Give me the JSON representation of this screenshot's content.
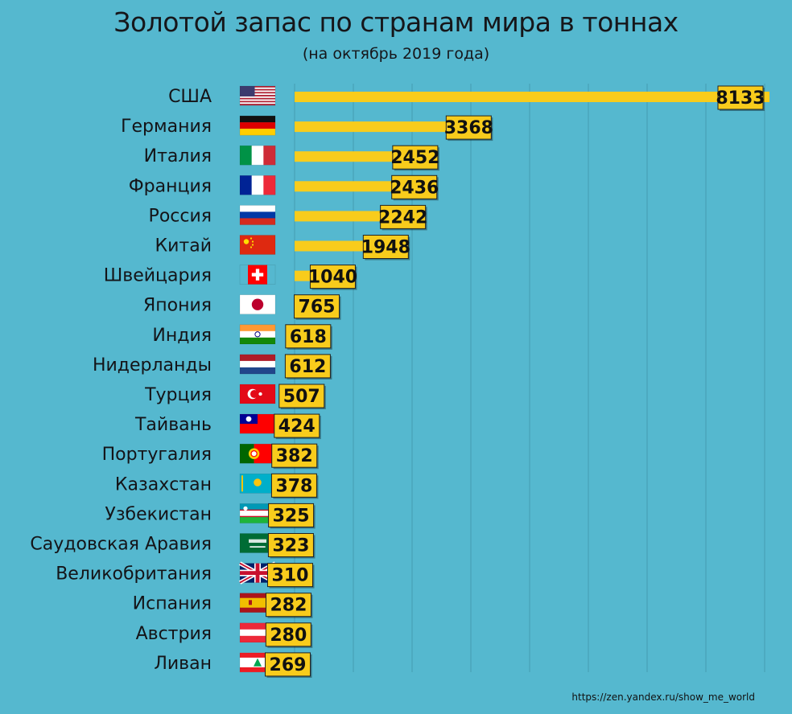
{
  "title": "Золотой запас по странам мира в тоннах",
  "subtitle": "(на октябрь 2019 года)",
  "source": "https://zen.yandex.ru/show_me_world",
  "colors": {
    "background": "#55b8cf",
    "bar": "#f8cc1c",
    "label_box": "#f8cc1c",
    "text": "#141418"
  },
  "chart_data": {
    "type": "bar",
    "orientation": "horizontal",
    "title": "Золотой запас по странам мира в тоннах",
    "subtitle": "(на октябрь 2019 года)",
    "categories": [
      "США",
      "Германия",
      "Италия",
      "Франция",
      "Россия",
      "Китай",
      "Швейцария",
      "Япония",
      "Индия",
      "Нидерланды",
      "Турция",
      "Тайвань",
      "Португалия",
      "Казахстан",
      "Узбекистан",
      "Саудовская Аравия",
      "Великобритания",
      "Испания",
      "Австрия",
      "Ливан"
    ],
    "flags": [
      "usa-flag-icon",
      "germany-flag-icon",
      "italy-flag-icon",
      "france-flag-icon",
      "russia-flag-icon",
      "china-flag-icon",
      "switzerland-flag-icon",
      "japan-flag-icon",
      "india-flag-icon",
      "netherlands-flag-icon",
      "turkey-flag-icon",
      "taiwan-flag-icon",
      "portugal-flag-icon",
      "kazakhstan-flag-icon",
      "uzbekistan-flag-icon",
      "saudi-arabia-flag-icon",
      "uk-flag-icon",
      "spain-flag-icon",
      "austria-flag-icon",
      "lebanon-flag-icon"
    ],
    "values": [
      8133,
      3368,
      2452,
      2436,
      2242,
      1948,
      1040,
      765,
      618,
      612,
      507,
      424,
      382,
      378,
      325,
      323,
      310,
      282,
      280,
      269
    ],
    "xlim": [
      0,
      8133
    ],
    "grid": true,
    "grid_orientation": "vertical",
    "data_labels": true,
    "legend": "none"
  }
}
